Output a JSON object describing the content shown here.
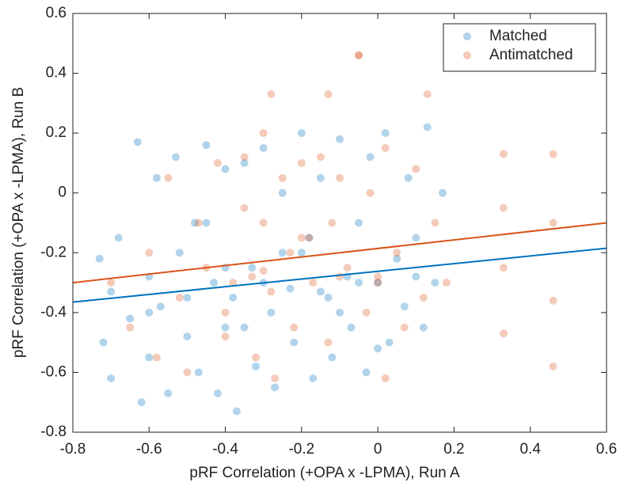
{
  "chart_data": {
    "type": "scatter",
    "xlabel": "pRF Correlation (+OPA x -LPMA), Run A",
    "ylabel": "pRF Correlation (+OPA x -LPMA), Run B",
    "xlim": [
      -0.8,
      0.6
    ],
    "ylim": [
      -0.8,
      0.6
    ],
    "xticks": [
      -0.8,
      -0.6,
      -0.4,
      -0.2,
      0,
      0.2,
      0.4,
      0.6
    ],
    "yticks": [
      -0.8,
      -0.6,
      -0.4,
      -0.2,
      0,
      0.2,
      0.4,
      0.6
    ],
    "grid": false,
    "legend": "northeast",
    "series": [
      {
        "name": "Matched",
        "color": "#0072BD",
        "x": [
          -0.73,
          -0.72,
          -0.7,
          -0.7,
          -0.68,
          -0.65,
          -0.63,
          -0.62,
          -0.6,
          -0.6,
          -0.58,
          -0.57,
          -0.55,
          -0.53,
          -0.52,
          -0.5,
          -0.48,
          -0.47,
          -0.45,
          -0.43,
          -0.42,
          -0.4,
          -0.4,
          -0.38,
          -0.37,
          -0.35,
          -0.33,
          -0.32,
          -0.3,
          -0.28,
          -0.27,
          -0.25,
          -0.23,
          -0.22,
          -0.2,
          -0.18,
          -0.17,
          -0.15,
          -0.13,
          -0.12,
          -0.1,
          -0.08,
          -0.07,
          -0.05,
          -0.03,
          -0.02,
          0,
          0.02,
          0.03,
          0.05,
          0.07,
          0.08,
          0.1,
          0.12,
          0.13,
          0.15,
          0.17,
          -0.6,
          -0.5,
          -0.4,
          -0.3,
          -0.2,
          -0.1,
          0,
          0.1,
          -0.45,
          -0.35,
          -0.25,
          -0.15,
          -0.05
        ],
        "values": [
          -0.22,
          -0.5,
          -0.33,
          -0.62,
          -0.15,
          -0.42,
          0.17,
          -0.7,
          -0.28,
          -0.55,
          0.05,
          -0.38,
          -0.67,
          0.12,
          -0.2,
          -0.48,
          -0.1,
          -0.6,
          0.16,
          -0.3,
          -0.67,
          0.08,
          -0.45,
          -0.35,
          -0.73,
          0.1,
          -0.25,
          -0.58,
          0.15,
          -0.4,
          -0.65,
          0,
          -0.32,
          -0.5,
          0.2,
          -0.15,
          -0.62,
          0.05,
          -0.35,
          -0.55,
          0.18,
          -0.28,
          -0.45,
          -0.1,
          -0.6,
          0.12,
          -0.3,
          0.2,
          -0.5,
          -0.22,
          -0.38,
          0.05,
          -0.15,
          -0.45,
          0.22,
          -0.3,
          0,
          -0.4,
          -0.35,
          -0.25,
          -0.3,
          -0.2,
          -0.4,
          -0.52,
          -0.28,
          -0.1,
          -0.45,
          -0.2,
          -0.33,
          -0.3
        ]
      },
      {
        "name": "Antimatched",
        "color": "#D95319",
        "x": [
          -0.7,
          -0.65,
          -0.6,
          -0.58,
          -0.55,
          -0.52,
          -0.5,
          -0.47,
          -0.45,
          -0.42,
          -0.4,
          -0.38,
          -0.35,
          -0.35,
          -0.33,
          -0.32,
          -0.3,
          -0.3,
          -0.28,
          -0.27,
          -0.25,
          -0.23,
          -0.22,
          -0.2,
          -0.18,
          -0.17,
          -0.15,
          -0.13,
          -0.13,
          -0.12,
          -0.1,
          -0.08,
          -0.05,
          -0.03,
          -0.02,
          0,
          0.02,
          0.05,
          0.07,
          0.1,
          0.12,
          0.13,
          0.15,
          0.18,
          0.33,
          0.33,
          0.33,
          0.33,
          0.46,
          0.46,
          0.46,
          0.46,
          -0.4,
          -0.3,
          -0.2,
          -0.1,
          0,
          -0.05,
          0.02,
          -0.28
        ],
        "values": [
          -0.3,
          -0.45,
          -0.2,
          -0.55,
          0.05,
          -0.35,
          -0.6,
          -0.1,
          -0.25,
          0.1,
          -0.48,
          -0.3,
          0.12,
          -0.05,
          -0.28,
          -0.55,
          0.2,
          -0.1,
          -0.33,
          -0.62,
          0.05,
          -0.2,
          -0.45,
          0.1,
          -0.15,
          -0.3,
          0.12,
          0.33,
          -0.5,
          -0.1,
          0.05,
          -0.25,
          0.46,
          -0.4,
          0,
          -0.3,
          0.15,
          -0.2,
          -0.45,
          0.08,
          -0.35,
          0.33,
          -0.1,
          -0.3,
          0.13,
          -0.05,
          -0.25,
          -0.47,
          0.13,
          -0.1,
          -0.36,
          -0.58,
          -0.4,
          -0.26,
          -0.15,
          -0.28,
          -0.28,
          0.46,
          -0.62,
          0.33
        ]
      }
    ],
    "lines": [
      {
        "color": "#0072BD",
        "x": [
          -0.8,
          0.6
        ],
        "values": [
          -0.365,
          -0.185
        ]
      },
      {
        "color": "#D95319",
        "x": [
          -0.8,
          0.6
        ],
        "values": [
          -0.3,
          -0.1
        ]
      }
    ]
  }
}
